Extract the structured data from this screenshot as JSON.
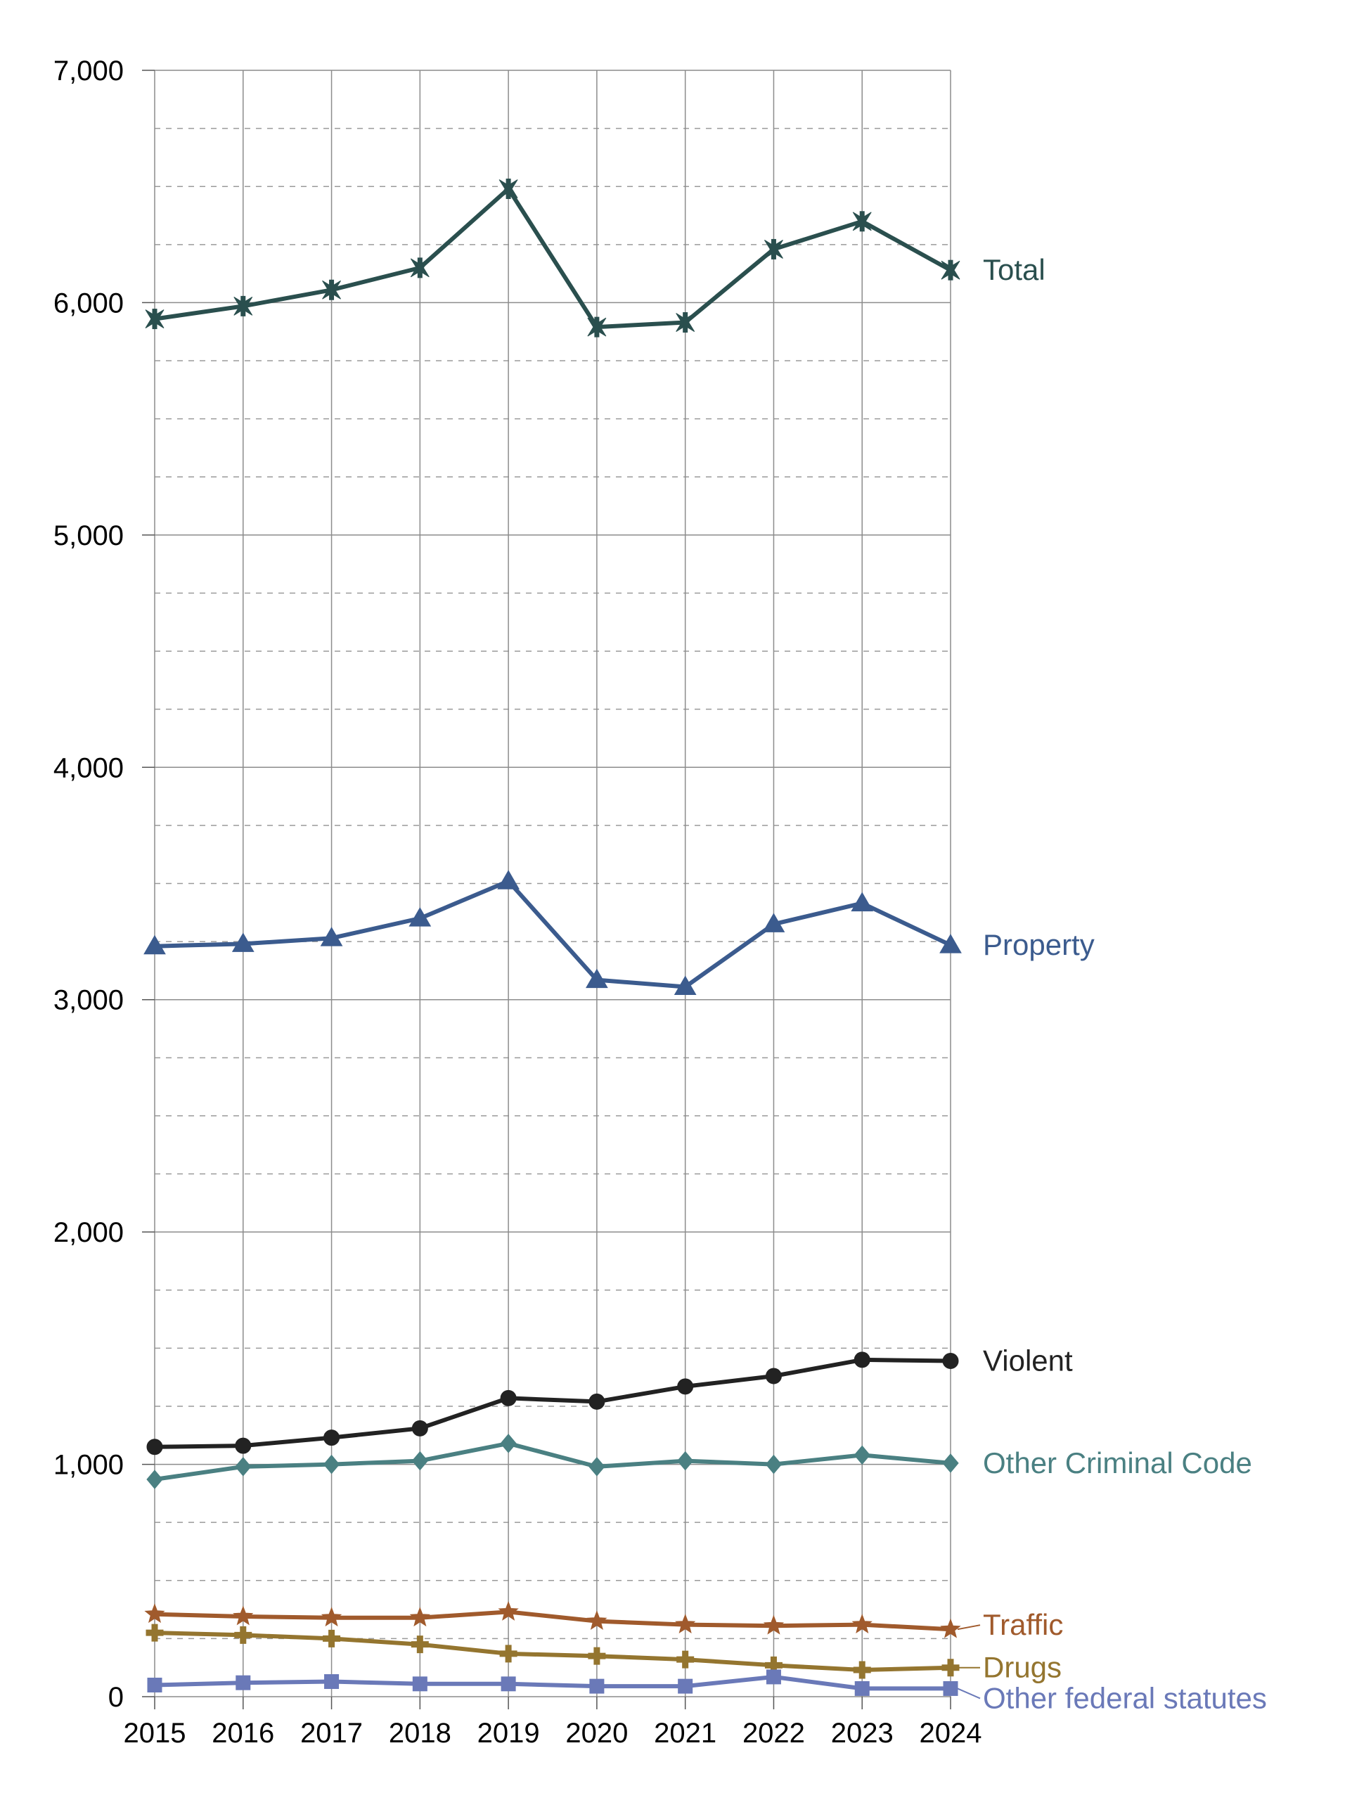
{
  "chart_data": {
    "type": "line",
    "title": "",
    "xlabel": "",
    "ylabel": "",
    "x": [
      2015,
      2016,
      2017,
      2018,
      2019,
      2020,
      2021,
      2022,
      2023,
      2024
    ],
    "ylim": [
      0,
      7000
    ],
    "yticks": [
      0,
      1000,
      2000,
      3000,
      4000,
      5000,
      6000,
      7000
    ],
    "ytick_labels": [
      "0",
      "1,000",
      "2,000",
      "3,000",
      "4,000",
      "5,000",
      "6,000",
      "7,000"
    ],
    "grid": {
      "major_y": true,
      "minor_y_dashed": true,
      "vertical": true
    },
    "legend": "labels at line ends, right",
    "series": [
      {
        "name": "Total",
        "color": "#2a4f4e",
        "marker": "cross-star",
        "values": [
          5930,
          5985,
          6055,
          6150,
          6490,
          5895,
          5915,
          6230,
          6350,
          6140
        ]
      },
      {
        "name": "Property",
        "color": "#3b5b8e",
        "marker": "triangle",
        "values": [
          3230,
          3240,
          3265,
          3350,
          3510,
          3085,
          3055,
          3325,
          3415,
          3235
        ]
      },
      {
        "name": "Violent",
        "color": "#222222",
        "marker": "circle",
        "values": [
          1075,
          1080,
          1115,
          1155,
          1285,
          1270,
          1335,
          1380,
          1450,
          1445
        ]
      },
      {
        "name": "Other Criminal Code",
        "color": "#4a8082",
        "marker": "diamond",
        "values": [
          935,
          990,
          1000,
          1015,
          1090,
          990,
          1015,
          1000,
          1040,
          1005
        ]
      },
      {
        "name": "Traffic",
        "color": "#a05a2c",
        "marker": "star",
        "values": [
          355,
          345,
          340,
          340,
          365,
          325,
          310,
          305,
          310,
          290
        ]
      },
      {
        "name": "Drugs",
        "color": "#94752f",
        "marker": "plus",
        "values": [
          275,
          265,
          250,
          225,
          185,
          175,
          160,
          135,
          115,
          125
        ]
      },
      {
        "name": "Other federal statutes",
        "color": "#6a79b8",
        "marker": "square",
        "values": [
          50,
          60,
          65,
          55,
          55,
          45,
          45,
          85,
          35,
          35
        ]
      }
    ]
  }
}
